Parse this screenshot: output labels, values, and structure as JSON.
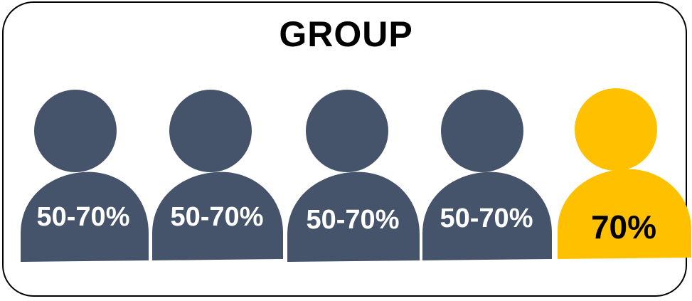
{
  "title": "GROUP",
  "people": [
    {
      "label": "50-70%",
      "color": "#45546a",
      "label_color": "#ffffff",
      "highlight": false
    },
    {
      "label": "50-70%",
      "color": "#45546a",
      "label_color": "#ffffff",
      "highlight": false
    },
    {
      "label": "50-70%",
      "color": "#45546a",
      "label_color": "#ffffff",
      "highlight": false
    },
    {
      "label": "50-70%",
      "color": "#45546a",
      "label_color": "#ffffff",
      "highlight": false
    },
    {
      "label": "70%",
      "color": "#ffc000",
      "label_color": "#000000",
      "highlight": true
    }
  ]
}
